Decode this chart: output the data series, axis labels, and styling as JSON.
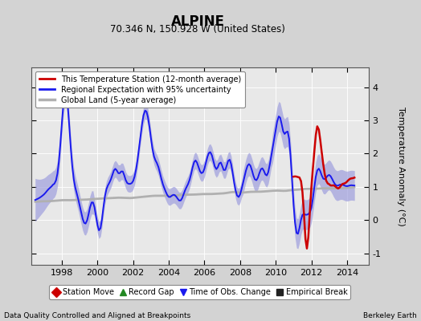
{
  "title": "ALPINE",
  "subtitle": "70.346 N, 150.928 W (United States)",
  "ylabel": "Temperature Anomaly (°C)",
  "footer_left": "Data Quality Controlled and Aligned at Breakpoints",
  "footer_right": "Berkeley Earth",
  "xlim": [
    1996.3,
    2015.2
  ],
  "ylim": [
    -1.35,
    4.6
  ],
  "yticks": [
    -1,
    0,
    1,
    2,
    3,
    4
  ],
  "xticks": [
    1998,
    2000,
    2002,
    2004,
    2006,
    2008,
    2010,
    2012,
    2014
  ],
  "bg_color": "#d3d3d3",
  "plot_bg_color": "#e8e8e8",
  "regional_line_color": "#1a1aee",
  "regional_fill_color": "#9999dd",
  "station_line_color": "#cc0000",
  "global_line_color": "#b0b0b0",
  "legend_items": [
    {
      "label": "This Temperature Station (12-month average)",
      "color": "#cc0000",
      "lw": 2.0
    },
    {
      "label": "Regional Expectation with 95% uncertainty",
      "color": "#1a1aee",
      "fill": "#9999dd",
      "lw": 2.0
    },
    {
      "label": "Global Land (5-year average)",
      "color": "#b0b0b0",
      "lw": 2.5
    }
  ],
  "bottom_legend": [
    {
      "label": "Station Move",
      "color": "#cc0000",
      "marker": "D"
    },
    {
      "label": "Record Gap",
      "color": "#228822",
      "marker": "^"
    },
    {
      "label": "Time of Obs. Change",
      "color": "#1a1aee",
      "marker": "v"
    },
    {
      "label": "Empirical Break",
      "color": "#222222",
      "marker": "s"
    }
  ],
  "regional_x": [
    1996.5,
    1996.58,
    1996.67,
    1996.75,
    1996.83,
    1996.92,
    1997.0,
    1997.08,
    1997.17,
    1997.25,
    1997.33,
    1997.42,
    1997.5,
    1997.58,
    1997.67,
    1997.75,
    1997.83,
    1997.92,
    1998.0,
    1998.08,
    1998.17,
    1998.25,
    1998.33,
    1998.42,
    1998.5,
    1998.58,
    1998.67,
    1998.75,
    1998.83,
    1998.92,
    1999.0,
    1999.08,
    1999.17,
    1999.25,
    1999.33,
    1999.42,
    1999.5,
    1999.58,
    1999.67,
    1999.75,
    1999.83,
    1999.92,
    2000.0,
    2000.08,
    2000.17,
    2000.25,
    2000.33,
    2000.42,
    2000.5,
    2000.58,
    2000.67,
    2000.75,
    2000.83,
    2000.92,
    2001.0,
    2001.08,
    2001.17,
    2001.25,
    2001.33,
    2001.42,
    2001.5,
    2001.58,
    2001.67,
    2001.75,
    2001.83,
    2001.92,
    2002.0,
    2002.08,
    2002.17,
    2002.25,
    2002.33,
    2002.42,
    2002.5,
    2002.58,
    2002.67,
    2002.75,
    2002.83,
    2002.92,
    2003.0,
    2003.08,
    2003.17,
    2003.25,
    2003.33,
    2003.42,
    2003.5,
    2003.58,
    2003.67,
    2003.75,
    2003.83,
    2003.92,
    2004.0,
    2004.08,
    2004.17,
    2004.25,
    2004.33,
    2004.42,
    2004.5,
    2004.58,
    2004.67,
    2004.75,
    2004.83,
    2004.92,
    2005.0,
    2005.08,
    2005.17,
    2005.25,
    2005.33,
    2005.42,
    2005.5,
    2005.58,
    2005.67,
    2005.75,
    2005.83,
    2005.92,
    2006.0,
    2006.08,
    2006.17,
    2006.25,
    2006.33,
    2006.42,
    2006.5,
    2006.58,
    2006.67,
    2006.75,
    2006.83,
    2006.92,
    2007.0,
    2007.08,
    2007.17,
    2007.25,
    2007.33,
    2007.42,
    2007.5,
    2007.58,
    2007.67,
    2007.75,
    2007.83,
    2007.92,
    2008.0,
    2008.08,
    2008.17,
    2008.25,
    2008.33,
    2008.42,
    2008.5,
    2008.58,
    2008.67,
    2008.75,
    2008.83,
    2008.92,
    2009.0,
    2009.08,
    2009.17,
    2009.25,
    2009.33,
    2009.42,
    2009.5,
    2009.58,
    2009.67,
    2009.75,
    2009.83,
    2009.92,
    2010.0,
    2010.08,
    2010.17,
    2010.25,
    2010.33,
    2010.42,
    2010.5,
    2010.58,
    2010.67,
    2010.75,
    2010.83,
    2010.92,
    2011.0,
    2011.08,
    2011.17,
    2011.25,
    2011.33,
    2011.42,
    2011.5,
    2011.58,
    2011.67,
    2011.75,
    2011.83,
    2011.92,
    2012.0,
    2012.08,
    2012.17,
    2012.25,
    2012.33,
    2012.42,
    2012.5,
    2012.58,
    2012.67,
    2012.75,
    2012.83,
    2012.92,
    2013.0,
    2013.08,
    2013.17,
    2013.25,
    2013.33,
    2013.42,
    2013.5,
    2013.58,
    2013.67,
    2013.75,
    2013.83,
    2013.92,
    2014.0,
    2014.08,
    2014.17,
    2014.25,
    2014.33,
    2014.42
  ],
  "station_x_start": 2011.0
}
